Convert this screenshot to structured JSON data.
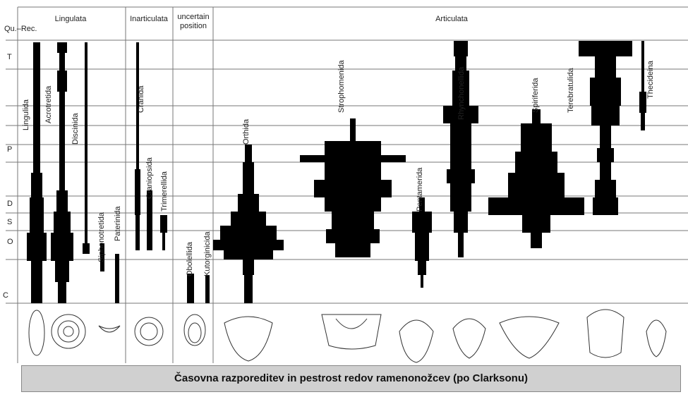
{
  "header": {
    "groups": [
      "Lingulata",
      "Inarticulata",
      "uncertain position",
      "Articulata"
    ]
  },
  "periods": [
    "Qu.–Rec.",
    "T",
    "P",
    "D",
    "S",
    "O",
    "C"
  ],
  "orders": [
    "Lingulida",
    "Acrotretida",
    "Discinida",
    "Siphonotretida",
    "Paterinida",
    "Cranida",
    "Craniopsida",
    "Trimerellida",
    "Obolellida",
    "Kutorginicida",
    "Orthida",
    "Strophomenida",
    "Pentamerida",
    "Rhynchonellida",
    "Spiriferida",
    "Terebratulida",
    "Thecideina"
  ],
  "caption": "Časovna razporeditev in pestrost redov ramenonožcev (po Clarksonu)"
}
